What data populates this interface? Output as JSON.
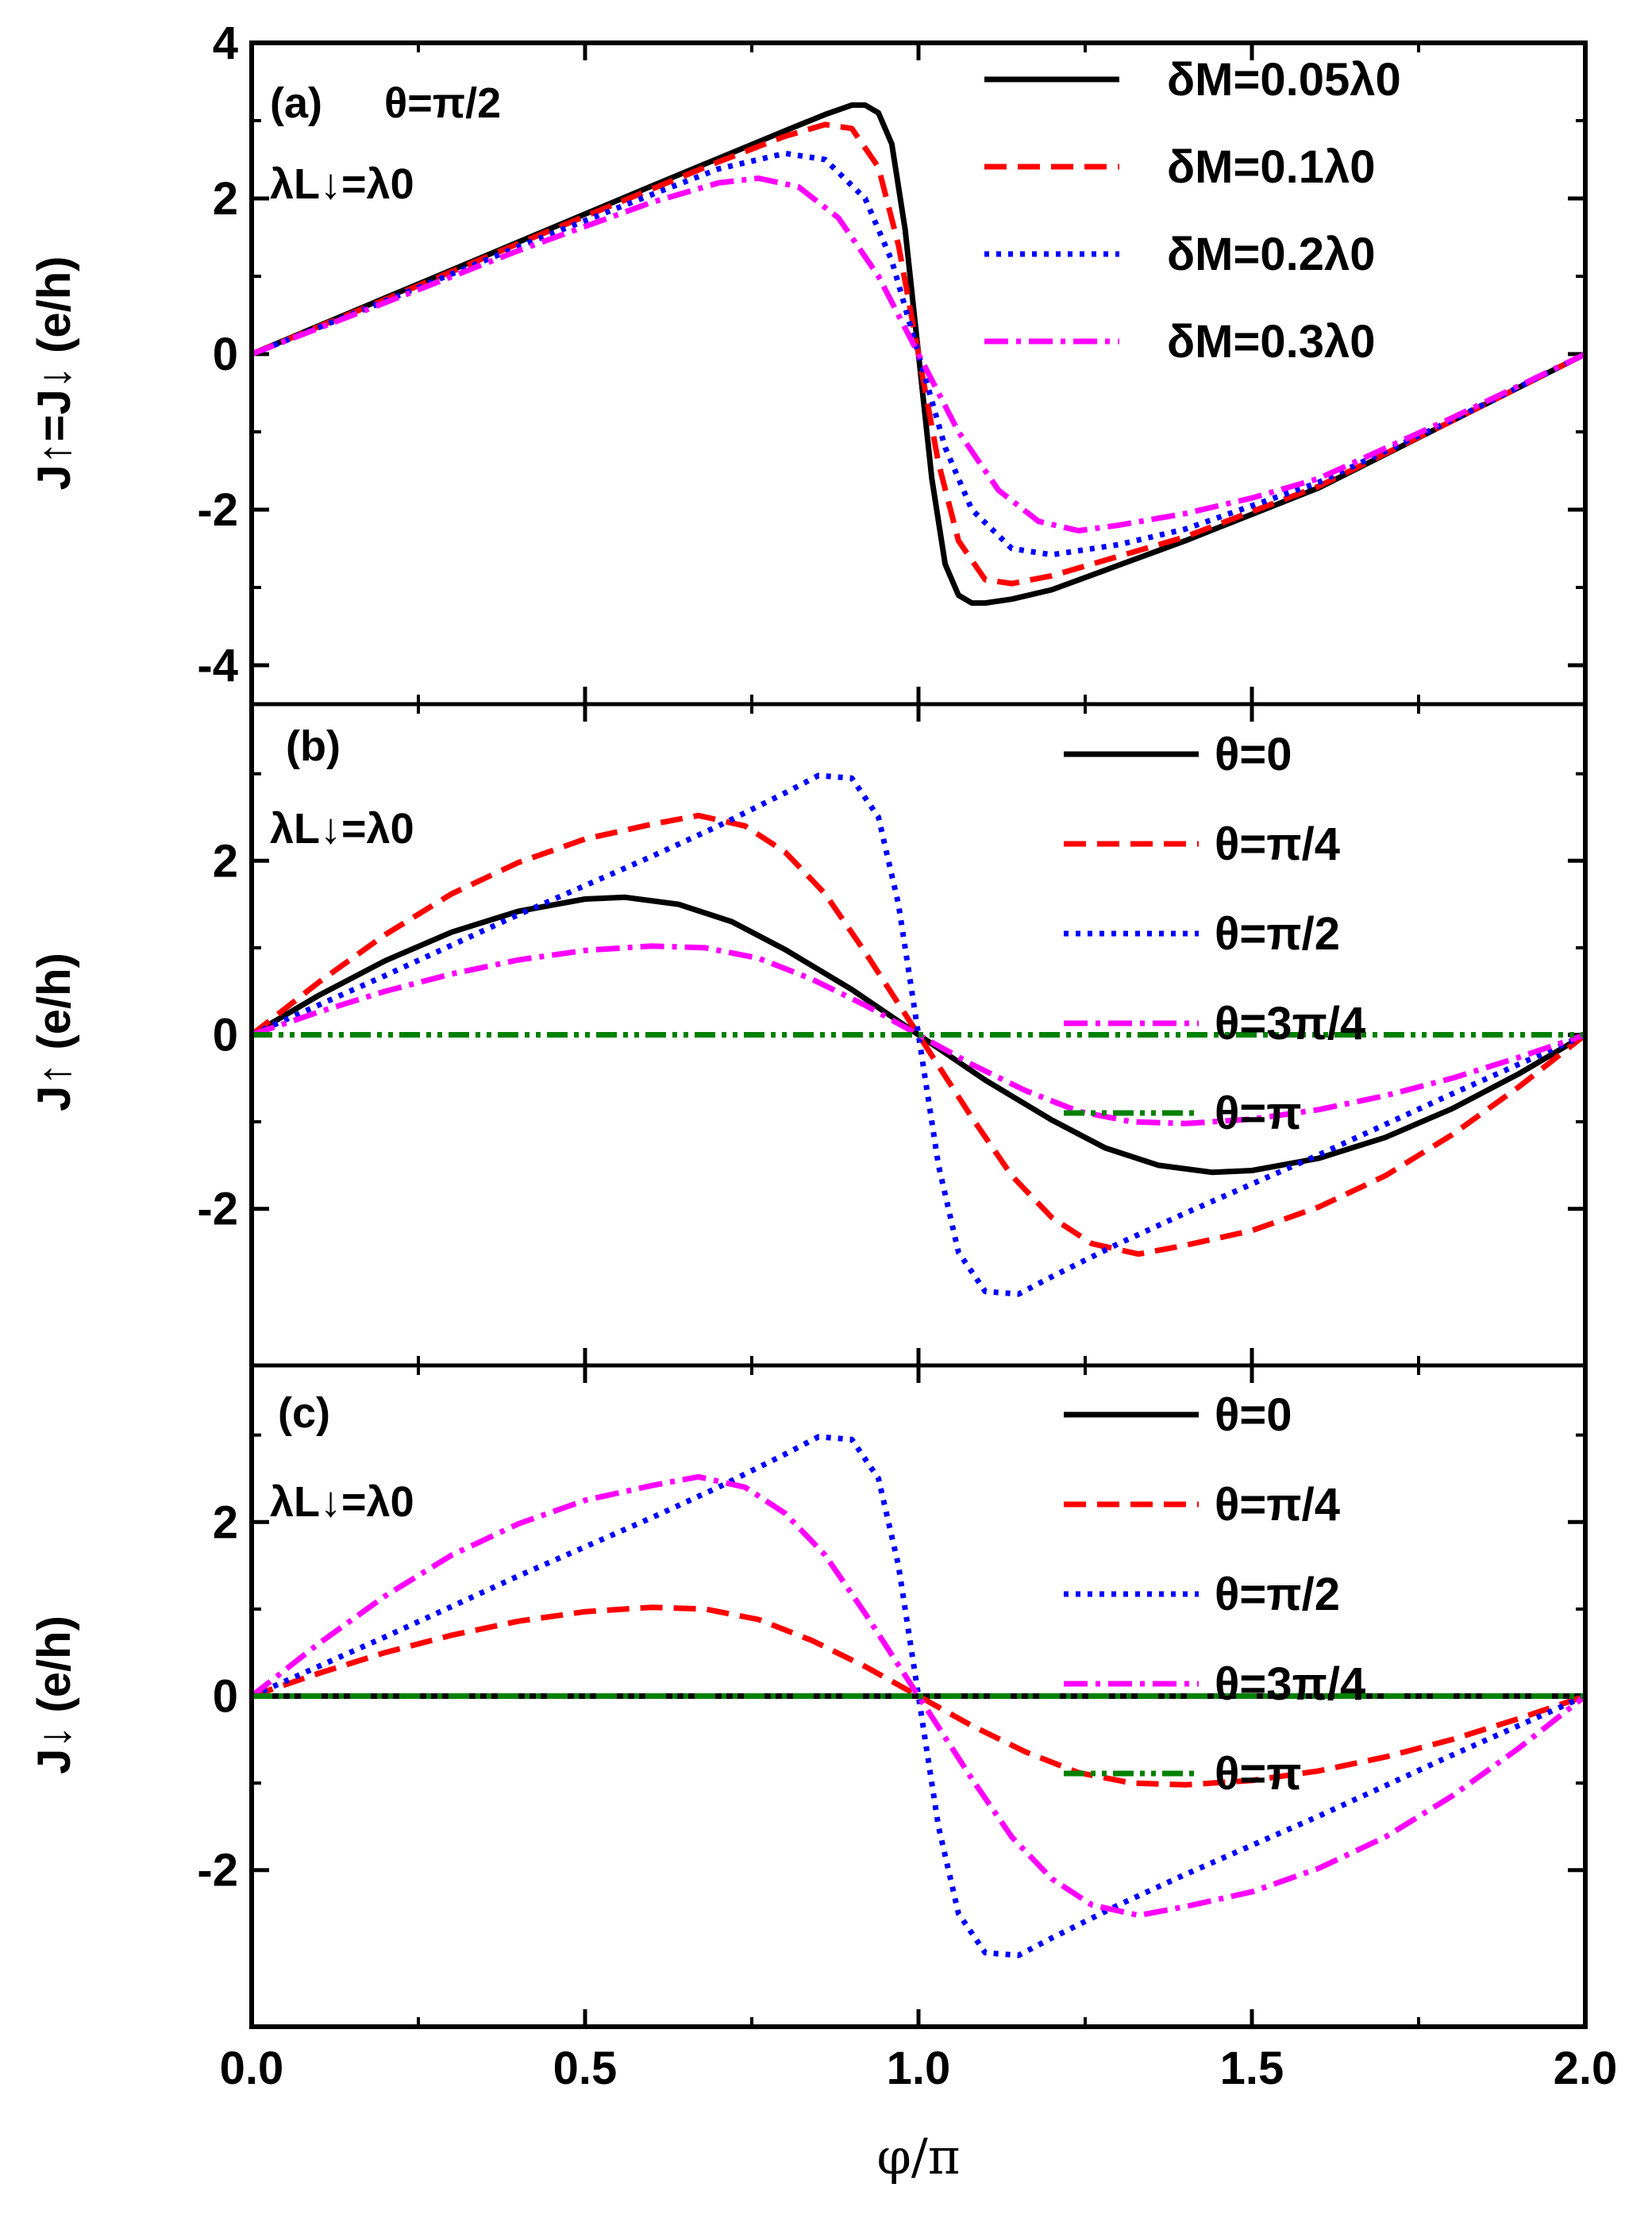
{
  "chart_data": [
    {
      "type": "line",
      "panel_label": "(a)",
      "ylabel": "J↑=J↓ (e/h)",
      "xlabel": "φ/π",
      "xlim": [
        0,
        2
      ],
      "ylim": [
        -4.5,
        4
      ],
      "xticks": [
        0,
        0.5,
        1,
        1.5,
        2
      ],
      "xtick_labels": [
        "0.0",
        "0.5",
        "1.0",
        "1.5",
        "2.0"
      ],
      "yticks": [
        -4,
        -2,
        0,
        2,
        4
      ],
      "ytick_labels": [
        "-4",
        "-2",
        "0",
        "2",
        "4"
      ],
      "annotations": [
        "θ=π/2",
        "λL↓=λ0"
      ],
      "legend_position": "top-right",
      "series": [
        {
          "name": "δM=0.05λ0",
          "color": "#000000",
          "style": "solid",
          "x": [
            0,
            0.2,
            0.4,
            0.6,
            0.8,
            0.86,
            0.9,
            0.92,
            0.94,
            0.96,
            0.98,
            1.0,
            1.02,
            1.04,
            1.06,
            1.08,
            1.1,
            1.14,
            1.2,
            1.4,
            1.6,
            1.8,
            2.0
          ],
          "values": [
            0,
            0.72,
            1.44,
            2.16,
            2.87,
            3.08,
            3.2,
            3.2,
            3.1,
            2.7,
            1.6,
            0,
            -1.6,
            -2.7,
            -3.1,
            -3.2,
            -3.2,
            -3.15,
            -3.03,
            -2.4,
            -1.72,
            -0.86,
            0
          ]
        },
        {
          "name": "δM=0.1λ0",
          "color": "#ff0000",
          "style": "dashed",
          "x": [
            0,
            0.2,
            0.4,
            0.6,
            0.7,
            0.8,
            0.86,
            0.9,
            0.94,
            0.97,
            1.0,
            1.03,
            1.06,
            1.1,
            1.14,
            1.2,
            1.3,
            1.4,
            1.6,
            1.8,
            2.0
          ],
          "values": [
            0,
            0.7,
            1.42,
            2.12,
            2.47,
            2.8,
            2.95,
            2.9,
            2.4,
            1.4,
            0,
            -1.4,
            -2.4,
            -2.9,
            -2.95,
            -2.85,
            -2.6,
            -2.35,
            -1.7,
            -0.86,
            0
          ]
        },
        {
          "name": "δM=0.2λ0",
          "color": "#0000ff",
          "style": "dotted",
          "x": [
            0,
            0.2,
            0.4,
            0.6,
            0.7,
            0.8,
            0.86,
            0.92,
            0.96,
            1.0,
            1.04,
            1.08,
            1.14,
            1.2,
            1.3,
            1.4,
            1.6,
            1.8,
            2.0
          ],
          "values": [
            0,
            0.68,
            1.38,
            2.05,
            2.38,
            2.58,
            2.5,
            2.0,
            1.2,
            0,
            -1.2,
            -2.0,
            -2.5,
            -2.58,
            -2.45,
            -2.25,
            -1.65,
            -0.85,
            0
          ]
        },
        {
          "name": "δM=0.3λ0",
          "color": "#ff00ff",
          "style": "dashdot",
          "x": [
            0,
            0.2,
            0.4,
            0.6,
            0.7,
            0.76,
            0.82,
            0.88,
            0.94,
            1.0,
            1.06,
            1.12,
            1.18,
            1.24,
            1.3,
            1.4,
            1.5,
            1.6,
            1.8,
            2.0
          ],
          "values": [
            0,
            0.66,
            1.33,
            1.95,
            2.2,
            2.26,
            2.15,
            1.75,
            1.0,
            0,
            -1.0,
            -1.75,
            -2.15,
            -2.27,
            -2.2,
            -2.05,
            -1.85,
            -1.6,
            -0.82,
            0
          ]
        }
      ]
    },
    {
      "type": "line",
      "panel_label": "(b)",
      "ylabel": "J↑ (e/h)",
      "xlabel": "φ/π",
      "xlim": [
        0,
        2
      ],
      "ylim": [
        -3.8,
        3.8
      ],
      "yticks": [
        -2,
        0,
        2
      ],
      "ytick_labels": [
        "-2",
        "0",
        "2"
      ],
      "annotations": [
        "λL↓=λ0"
      ],
      "legend_position": "top-right",
      "series": [
        {
          "name": "θ=0",
          "color": "#000000",
          "style": "solid",
          "x": [
            0,
            0.1,
            0.2,
            0.3,
            0.4,
            0.5,
            0.56,
            0.64,
            0.72,
            0.8,
            0.9,
            1.0,
            1.1,
            1.2,
            1.28,
            1.36,
            1.44,
            1.5,
            1.6,
            1.7,
            1.8,
            1.9,
            2.0
          ],
          "values": [
            0,
            0.45,
            0.85,
            1.18,
            1.42,
            1.56,
            1.58,
            1.5,
            1.3,
            0.98,
            0.52,
            0,
            -0.52,
            -0.98,
            -1.3,
            -1.5,
            -1.58,
            -1.56,
            -1.42,
            -1.18,
            -0.85,
            -0.45,
            0
          ]
        },
        {
          "name": "θ=π/4",
          "color": "#ff0000",
          "style": "dashed",
          "x": [
            0,
            0.1,
            0.2,
            0.3,
            0.4,
            0.5,
            0.6,
            0.67,
            0.74,
            0.8,
            0.86,
            0.92,
            1.0,
            1.08,
            1.14,
            1.2,
            1.26,
            1.33,
            1.4,
            1.5,
            1.6,
            1.7,
            1.8,
            1.9,
            2.0
          ],
          "values": [
            0,
            0.6,
            1.15,
            1.62,
            1.98,
            2.25,
            2.42,
            2.52,
            2.4,
            2.1,
            1.62,
            0.95,
            0,
            -0.95,
            -1.62,
            -2.1,
            -2.4,
            -2.52,
            -2.42,
            -2.25,
            -1.98,
            -1.62,
            -1.15,
            -0.6,
            0
          ]
        },
        {
          "name": "θ=π/2",
          "color": "#0000ff",
          "style": "dotted",
          "x": [
            0,
            0.2,
            0.4,
            0.6,
            0.7,
            0.8,
            0.85,
            0.9,
            0.94,
            0.97,
            1.0,
            1.03,
            1.06,
            1.1,
            1.15,
            1.2,
            1.3,
            1.4,
            1.6,
            1.8,
            2.0
          ],
          "values": [
            0,
            0.68,
            1.38,
            2.05,
            2.4,
            2.78,
            2.98,
            2.95,
            2.5,
            1.5,
            0,
            -1.5,
            -2.5,
            -2.95,
            -2.98,
            -2.78,
            -2.4,
            -2.05,
            -1.38,
            -0.68,
            0
          ]
        },
        {
          "name": "θ=3π/4",
          "color": "#ff00ff",
          "style": "dashdot",
          "x": [
            0,
            0.1,
            0.2,
            0.3,
            0.4,
            0.5,
            0.6,
            0.68,
            0.76,
            0.84,
            0.92,
            1.0,
            1.08,
            1.16,
            1.24,
            1.32,
            1.4,
            1.5,
            1.6,
            1.7,
            1.8,
            1.9,
            2.0
          ],
          "values": [
            0,
            0.26,
            0.5,
            0.7,
            0.86,
            0.97,
            1.02,
            1.0,
            0.88,
            0.64,
            0.34,
            0,
            -0.34,
            -0.64,
            -0.88,
            -1.0,
            -1.02,
            -0.97,
            -0.86,
            -0.7,
            -0.5,
            -0.26,
            0
          ]
        },
        {
          "name": "θ=π",
          "color": "#008000",
          "style": "dashdotdot",
          "x": [
            0,
            2
          ],
          "values": [
            0,
            0
          ]
        }
      ]
    },
    {
      "type": "line",
      "panel_label": "(c)",
      "ylabel": "J↓ (e/h)",
      "xlabel": "φ/π",
      "xlim": [
        0,
        2
      ],
      "ylim": [
        -3.8,
        3.8
      ],
      "yticks": [
        -2,
        0,
        2
      ],
      "ytick_labels": [
        "-2",
        "0",
        "2"
      ],
      "annotations": [
        "λL↓=λ0"
      ],
      "legend_position": "top-right",
      "series": [
        {
          "name": "θ=0",
          "color": "#000000",
          "style": "solid",
          "x": [
            0,
            2
          ],
          "values": [
            0,
            0
          ]
        },
        {
          "name": "θ=π/4",
          "color": "#ff0000",
          "style": "dashed",
          "x": [
            0,
            0.1,
            0.2,
            0.3,
            0.4,
            0.5,
            0.6,
            0.68,
            0.76,
            0.84,
            0.92,
            1.0,
            1.08,
            1.16,
            1.24,
            1.32,
            1.4,
            1.5,
            1.6,
            1.7,
            1.8,
            1.9,
            2.0
          ],
          "values": [
            0,
            0.26,
            0.5,
            0.7,
            0.86,
            0.97,
            1.02,
            1.0,
            0.88,
            0.64,
            0.34,
            0,
            -0.34,
            -0.64,
            -0.88,
            -1.0,
            -1.02,
            -0.97,
            -0.86,
            -0.7,
            -0.5,
            -0.26,
            0
          ]
        },
        {
          "name": "θ=π/2",
          "color": "#0000ff",
          "style": "dotted",
          "x": [
            0,
            0.2,
            0.4,
            0.6,
            0.7,
            0.8,
            0.85,
            0.9,
            0.94,
            0.97,
            1.0,
            1.03,
            1.06,
            1.1,
            1.15,
            1.2,
            1.3,
            1.4,
            1.6,
            1.8,
            2.0
          ],
          "values": [
            0,
            0.68,
            1.38,
            2.05,
            2.4,
            2.78,
            2.98,
            2.95,
            2.5,
            1.5,
            0,
            -1.5,
            -2.5,
            -2.95,
            -2.98,
            -2.78,
            -2.4,
            -2.05,
            -1.38,
            -0.68,
            0
          ]
        },
        {
          "name": "θ=3π/4",
          "color": "#ff00ff",
          "style": "dashdot",
          "x": [
            0,
            0.1,
            0.2,
            0.3,
            0.4,
            0.5,
            0.6,
            0.67,
            0.74,
            0.8,
            0.86,
            0.92,
            1.0,
            1.08,
            1.14,
            1.2,
            1.26,
            1.33,
            1.4,
            1.5,
            1.6,
            1.7,
            1.8,
            1.9,
            2.0
          ],
          "values": [
            0,
            0.6,
            1.15,
            1.62,
            1.98,
            2.25,
            2.42,
            2.52,
            2.4,
            2.1,
            1.62,
            0.95,
            0,
            -0.95,
            -1.62,
            -2.1,
            -2.4,
            -2.52,
            -2.42,
            -2.25,
            -1.98,
            -1.62,
            -1.15,
            -0.6,
            0
          ]
        },
        {
          "name": "θ=π",
          "color": "#008000",
          "style": "dashdotdot",
          "x": [
            0,
            2
          ],
          "values": [
            0,
            0
          ]
        }
      ]
    }
  ]
}
